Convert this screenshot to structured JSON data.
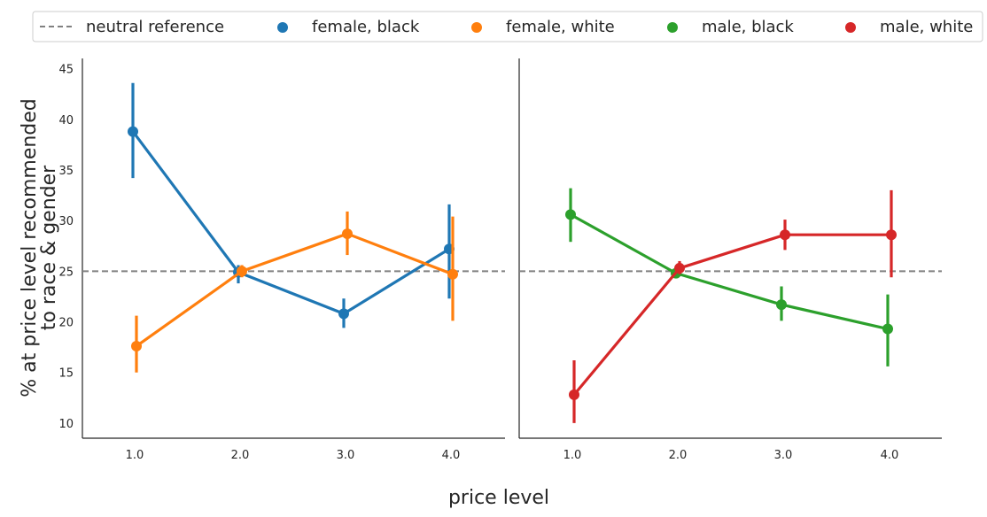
{
  "chart_data": {
    "type": "line",
    "x_categories": [
      "1.0",
      "2.0",
      "3.0",
      "4.0"
    ],
    "xlabel": "price level",
    "ylabel_lines": [
      "% at price level recommended",
      "to race & gender"
    ],
    "ylim": [
      8.5,
      45.5
    ],
    "yticks": [
      10,
      15,
      20,
      25,
      30,
      35,
      40,
      45
    ],
    "reference_line": {
      "label": "neutral reference",
      "y": 25,
      "color": "#808080",
      "style": "dashed"
    },
    "legend_placement": "top, above panels",
    "panels": [
      {
        "name": "left",
        "series": [
          {
            "name": "female, black",
            "color": "#1f77b4",
            "values": [
              38.8,
              24.9,
              20.8,
              27.2
            ],
            "ci_low": [
              34.2,
              23.8,
              19.4,
              22.3
            ],
            "ci_high": [
              43.6,
              25.6,
              22.3,
              31.6
            ]
          },
          {
            "name": "female, white",
            "color": "#ff7f0e",
            "values": [
              17.6,
              25.0,
              28.7,
              24.7
            ],
            "ci_low": [
              15.0,
              24.4,
              26.6,
              20.1
            ],
            "ci_high": [
              20.6,
              25.6,
              30.9,
              30.4
            ]
          }
        ]
      },
      {
        "name": "right",
        "series": [
          {
            "name": "male, black",
            "color": "#2ca02c",
            "values": [
              30.6,
              24.8,
              21.7,
              19.3
            ],
            "ci_low": [
              27.9,
              24.3,
              20.1,
              15.6
            ],
            "ci_high": [
              33.2,
              25.3,
              23.5,
              22.7
            ]
          },
          {
            "name": "male, white",
            "color": "#d62728",
            "values": [
              12.8,
              25.3,
              28.6,
              28.6
            ],
            "ci_low": [
              10.0,
              24.7,
              27.1,
              24.4
            ],
            "ci_high": [
              16.2,
              26.0,
              30.1,
              33.0
            ]
          }
        ]
      }
    ]
  }
}
